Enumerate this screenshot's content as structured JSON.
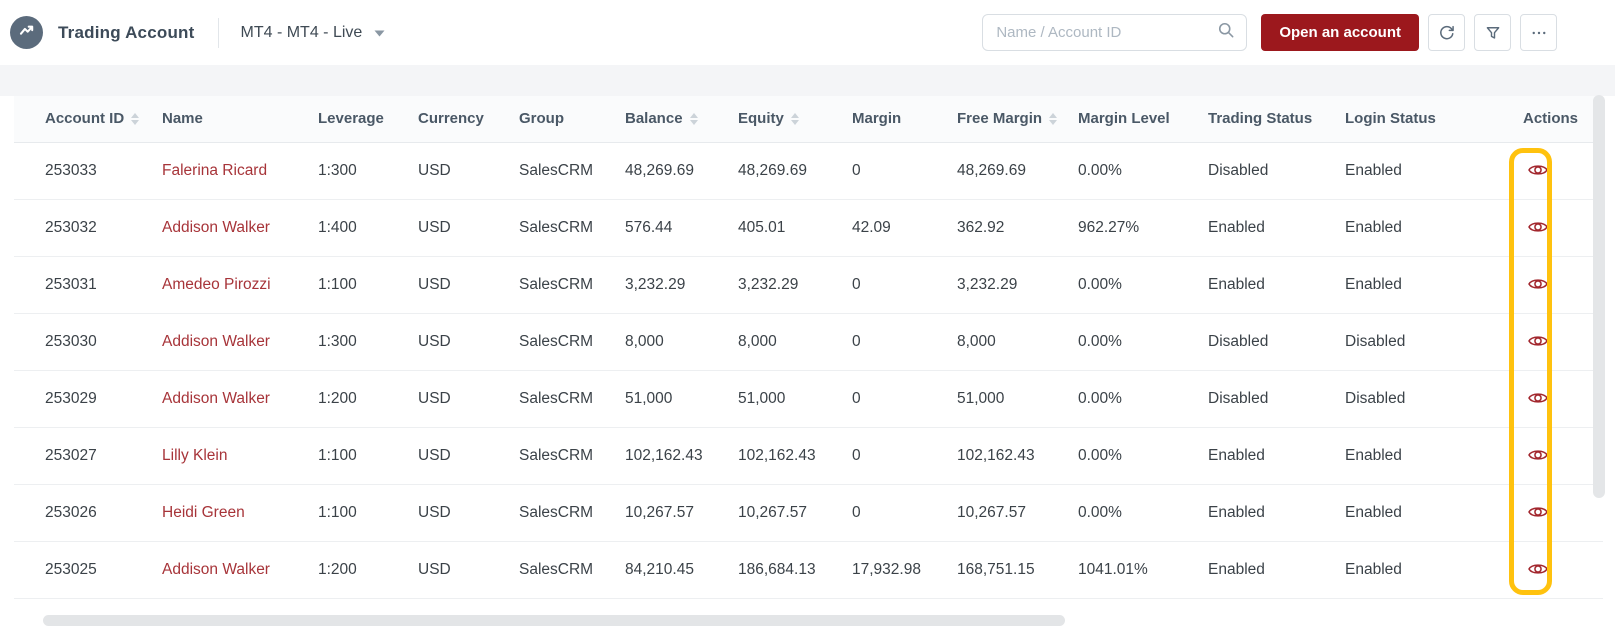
{
  "topbar": {
    "app_title": "Trading Account",
    "server_selector_value": "MT4 - MT4 - Live",
    "search_placeholder": "Name / Account ID",
    "open_account_label": "Open an account"
  },
  "colors": {
    "brand_button_red": "#9c181d",
    "name_link_red": "#a73439",
    "eye_icon_red": "#a2262d",
    "highlight_yellow": "#ffc20e",
    "logo_circle": "#5b6b7c"
  },
  "table": {
    "columns": [
      {
        "label": "Account ID",
        "sortable": true,
        "key": "account_id"
      },
      {
        "label": "Name",
        "sortable": false,
        "key": "name"
      },
      {
        "label": "Leverage",
        "sortable": false,
        "key": "leverage"
      },
      {
        "label": "Currency",
        "sortable": false,
        "key": "currency"
      },
      {
        "label": "Group",
        "sortable": false,
        "key": "group"
      },
      {
        "label": "Balance",
        "sortable": true,
        "key": "balance"
      },
      {
        "label": "Equity",
        "sortable": true,
        "key": "equity"
      },
      {
        "label": "Margin",
        "sortable": false,
        "key": "margin"
      },
      {
        "label": "Free Margin",
        "sortable": true,
        "key": "free_margin"
      },
      {
        "label": "Margin Level",
        "sortable": false,
        "key": "margin_level"
      },
      {
        "label": "Trading Status",
        "sortable": false,
        "key": "trading_status"
      },
      {
        "label": "Login Status",
        "sortable": false,
        "key": "login_status"
      },
      {
        "label": "Actions",
        "sortable": false,
        "key": "actions"
      }
    ],
    "rows": [
      {
        "account_id": "253033",
        "name": "Falerina Ricard",
        "leverage": "1:300",
        "currency": "USD",
        "group": "SalesCRM",
        "balance": "48,269.69",
        "equity": "48,269.69",
        "margin": "0",
        "free_margin": "48,269.69",
        "margin_level": "0.00%",
        "trading_status": "Disabled",
        "login_status": "Enabled"
      },
      {
        "account_id": "253032",
        "name": "Addison Walker",
        "leverage": "1:400",
        "currency": "USD",
        "group": "SalesCRM",
        "balance": "576.44",
        "equity": "405.01",
        "margin": "42.09",
        "free_margin": "362.92",
        "margin_level": "962.27%",
        "trading_status": "Enabled",
        "login_status": "Enabled"
      },
      {
        "account_id": "253031",
        "name": "Amedeo Pirozzi",
        "leverage": "1:100",
        "currency": "USD",
        "group": "SalesCRM",
        "balance": "3,232.29",
        "equity": "3,232.29",
        "margin": "0",
        "free_margin": "3,232.29",
        "margin_level": "0.00%",
        "trading_status": "Enabled",
        "login_status": "Enabled"
      },
      {
        "account_id": "253030",
        "name": "Addison Walker",
        "leverage": "1:300",
        "currency": "USD",
        "group": "SalesCRM",
        "balance": "8,000",
        "equity": "8,000",
        "margin": "0",
        "free_margin": "8,000",
        "margin_level": "0.00%",
        "trading_status": "Disabled",
        "login_status": "Disabled"
      },
      {
        "account_id": "253029",
        "name": "Addison Walker",
        "leverage": "1:200",
        "currency": "USD",
        "group": "SalesCRM",
        "balance": "51,000",
        "equity": "51,000",
        "margin": "0",
        "free_margin": "51,000",
        "margin_level": "0.00%",
        "trading_status": "Disabled",
        "login_status": "Disabled"
      },
      {
        "account_id": "253027",
        "name": "Lilly Klein",
        "leverage": "1:100",
        "currency": "USD",
        "group": "SalesCRM",
        "balance": "102,162.43",
        "equity": "102,162.43",
        "margin": "0",
        "free_margin": "102,162.43",
        "margin_level": "0.00%",
        "trading_status": "Enabled",
        "login_status": "Enabled"
      },
      {
        "account_id": "253026",
        "name": "Heidi Green",
        "leverage": "1:100",
        "currency": "USD",
        "group": "SalesCRM",
        "balance": "10,267.57",
        "equity": "10,267.57",
        "margin": "0",
        "free_margin": "10,267.57",
        "margin_level": "0.00%",
        "trading_status": "Enabled",
        "login_status": "Enabled"
      },
      {
        "account_id": "253025",
        "name": "Addison Walker",
        "leverage": "1:200",
        "currency": "USD",
        "group": "SalesCRM",
        "balance": "84,210.45",
        "equity": "186,684.13",
        "margin": "17,932.98",
        "free_margin": "168,751.15",
        "margin_level": "1041.01%",
        "trading_status": "Enabled",
        "login_status": "Enabled"
      }
    ]
  }
}
